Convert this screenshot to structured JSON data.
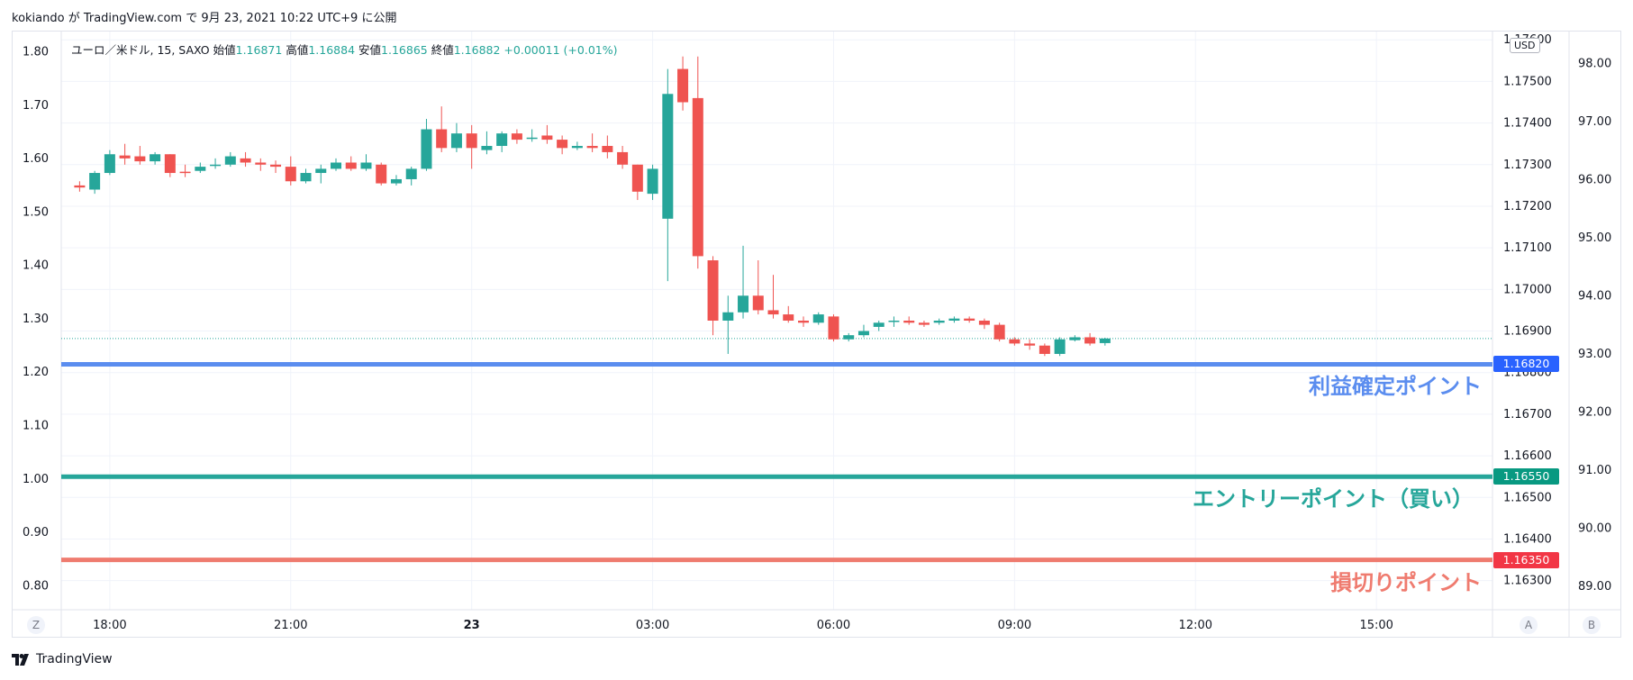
{
  "header": {
    "title": "kokiando が TradingView.com で 9月 23, 2021 10:22 UTC+9 に公開"
  },
  "legend": {
    "symbol": "ユーロ／米ドル, 15, SAXO",
    "open_label": "始値",
    "open": "1.16871",
    "high_label": "高値",
    "high": "1.16884",
    "low_label": "安値",
    "low": "1.16865",
    "close_label": "終値",
    "close": "1.16882",
    "change": "+0.00011 (+0.01%)"
  },
  "currency_button": "USD",
  "footer": {
    "brand": "TradingView",
    "zoom_left": "Z",
    "scale_a": "A",
    "scale_b": "B"
  },
  "colors": {
    "up": "#26a69a",
    "down": "#ef5350",
    "take_profit": "#5b8def",
    "entry": "#26a69a",
    "stop_loss": "#ef7b6f",
    "grid": "#f0f3fa"
  },
  "chart_data": {
    "type": "candlestick",
    "symbol": "EURUSD",
    "timeframe": "15",
    "price_axis": {
      "ylim": [
        1.1623,
        1.1762
      ],
      "ticks": [
        "1.17600",
        "1.17500",
        "1.17400",
        "1.17300",
        "1.17200",
        "1.17100",
        "1.17000",
        "1.16900",
        "1.16800",
        "1.16700",
        "1.16600",
        "1.16500",
        "1.16400",
        "1.16300"
      ]
    },
    "left_axis": {
      "ylim": [
        0.755,
        1.838
      ],
      "ticks": [
        "1.80",
        "1.70",
        "1.60",
        "1.50",
        "1.40",
        "1.30",
        "1.20",
        "1.10",
        "1.00",
        "0.90",
        "0.80"
      ]
    },
    "right_axis": {
      "ylim": [
        88.6,
        98.55
      ],
      "ticks": [
        "98.00",
        "97.00",
        "96.00",
        "95.00",
        "94.00",
        "93.00",
        "92.00",
        "91.00",
        "90.00",
        "89.00"
      ]
    },
    "time_axis": {
      "xlim": [
        17.3,
        33.95
      ],
      "ticks": [
        {
          "t": 18,
          "label": "18:00",
          "bold": false
        },
        {
          "t": 21,
          "label": "21:00",
          "bold": false
        },
        {
          "t": 24,
          "label": "23",
          "bold": true
        },
        {
          "t": 27,
          "label": "03:00",
          "bold": false
        },
        {
          "t": 30,
          "label": "06:00",
          "bold": false
        },
        {
          "t": 33,
          "label": "09:00",
          "bold": false
        },
        {
          "t": 36,
          "label": "12:00",
          "bold": false
        },
        {
          "t": 39,
          "label": "15:00",
          "bold": false
        }
      ]
    },
    "last_price": 1.16882,
    "levels": [
      {
        "name": "利益確定ポイント",
        "price": 1.1682,
        "label": "1.16820",
        "color": "#5b8def",
        "tag_color": "#2962ff"
      },
      {
        "name": "エントリーポイント（買い）",
        "price": 1.1655,
        "label": "1.16550",
        "color": "#26a69a",
        "tag_color": "#089981"
      },
      {
        "name": "損切りポイント",
        "price": 1.1635,
        "label": "1.16350",
        "color": "#ef7b6f",
        "tag_color": "#f23645"
      }
    ],
    "candles": [
      {
        "t": 17.5,
        "o": 1.1725,
        "h": 1.1726,
        "l": 1.17235,
        "c": 1.17245
      },
      {
        "t": 17.75,
        "o": 1.1724,
        "h": 1.17285,
        "l": 1.1723,
        "c": 1.1728
      },
      {
        "t": 18.0,
        "o": 1.1728,
        "h": 1.17335,
        "l": 1.17275,
        "c": 1.17325
      },
      {
        "t": 18.25,
        "o": 1.17322,
        "h": 1.1735,
        "l": 1.173,
        "c": 1.17315
      },
      {
        "t": 18.5,
        "o": 1.1732,
        "h": 1.17345,
        "l": 1.173,
        "c": 1.17308
      },
      {
        "t": 18.75,
        "o": 1.17308,
        "h": 1.1733,
        "l": 1.173,
        "c": 1.17325
      },
      {
        "t": 19.0,
        "o": 1.17325,
        "h": 1.17325,
        "l": 1.1727,
        "c": 1.1728
      },
      {
        "t": 19.25,
        "o": 1.17283,
        "h": 1.173,
        "l": 1.1727,
        "c": 1.1728
      },
      {
        "t": 19.5,
        "o": 1.17285,
        "h": 1.17305,
        "l": 1.1728,
        "c": 1.17295
      },
      {
        "t": 19.75,
        "o": 1.17298,
        "h": 1.17315,
        "l": 1.1729,
        "c": 1.173
      },
      {
        "t": 20.0,
        "o": 1.173,
        "h": 1.1733,
        "l": 1.17295,
        "c": 1.1732
      },
      {
        "t": 20.25,
        "o": 1.17315,
        "h": 1.1733,
        "l": 1.17295,
        "c": 1.17305
      },
      {
        "t": 20.5,
        "o": 1.17305,
        "h": 1.17315,
        "l": 1.17285,
        "c": 1.173
      },
      {
        "t": 20.75,
        "o": 1.173,
        "h": 1.1731,
        "l": 1.1728,
        "c": 1.17295
      },
      {
        "t": 21.0,
        "o": 1.17295,
        "h": 1.1732,
        "l": 1.1725,
        "c": 1.1726
      },
      {
        "t": 21.25,
        "o": 1.1726,
        "h": 1.1729,
        "l": 1.17255,
        "c": 1.1728
      },
      {
        "t": 21.5,
        "o": 1.1728,
        "h": 1.173,
        "l": 1.17255,
        "c": 1.1729
      },
      {
        "t": 21.75,
        "o": 1.1729,
        "h": 1.17315,
        "l": 1.17285,
        "c": 1.17305
      },
      {
        "t": 22.0,
        "o": 1.17305,
        "h": 1.1732,
        "l": 1.17285,
        "c": 1.1729
      },
      {
        "t": 22.25,
        "o": 1.1729,
        "h": 1.17325,
        "l": 1.17285,
        "c": 1.17305
      },
      {
        "t": 22.5,
        "o": 1.173,
        "h": 1.17305,
        "l": 1.1725,
        "c": 1.17255
      },
      {
        "t": 22.75,
        "o": 1.17255,
        "h": 1.17275,
        "l": 1.1725,
        "c": 1.17265
      },
      {
        "t": 23.0,
        "o": 1.17265,
        "h": 1.17295,
        "l": 1.1725,
        "c": 1.1729
      },
      {
        "t": 23.25,
        "o": 1.1729,
        "h": 1.1741,
        "l": 1.17285,
        "c": 1.17385
      },
      {
        "t": 23.5,
        "o": 1.17385,
        "h": 1.1744,
        "l": 1.1733,
        "c": 1.1734
      },
      {
        "t": 23.75,
        "o": 1.1734,
        "h": 1.174,
        "l": 1.1733,
        "c": 1.17375
      },
      {
        "t": 24.0,
        "o": 1.17375,
        "h": 1.17395,
        "l": 1.1729,
        "c": 1.1734
      },
      {
        "t": 24.25,
        "o": 1.17335,
        "h": 1.1738,
        "l": 1.17325,
        "c": 1.17345
      },
      {
        "t": 24.5,
        "o": 1.17345,
        "h": 1.1738,
        "l": 1.1733,
        "c": 1.17375
      },
      {
        "t": 24.75,
        "o": 1.17375,
        "h": 1.17385,
        "l": 1.1735,
        "c": 1.1736
      },
      {
        "t": 25.0,
        "o": 1.17363,
        "h": 1.17385,
        "l": 1.17355,
        "c": 1.17365
      },
      {
        "t": 25.25,
        "o": 1.1737,
        "h": 1.17395,
        "l": 1.1735,
        "c": 1.1736
      },
      {
        "t": 25.5,
        "o": 1.1736,
        "h": 1.1737,
        "l": 1.17325,
        "c": 1.1734
      },
      {
        "t": 25.75,
        "o": 1.1734,
        "h": 1.17355,
        "l": 1.17335,
        "c": 1.17345
      },
      {
        "t": 26.0,
        "o": 1.17345,
        "h": 1.17375,
        "l": 1.1733,
        "c": 1.1734
      },
      {
        "t": 26.25,
        "o": 1.17345,
        "h": 1.1737,
        "l": 1.17315,
        "c": 1.1733
      },
      {
        "t": 26.5,
        "o": 1.1733,
        "h": 1.17345,
        "l": 1.1729,
        "c": 1.173
      },
      {
        "t": 26.75,
        "o": 1.173,
        "h": 1.173,
        "l": 1.17215,
        "c": 1.17235
      },
      {
        "t": 27.0,
        "o": 1.1723,
        "h": 1.173,
        "l": 1.17215,
        "c": 1.1729
      },
      {
        "t": 27.25,
        "o": 1.1717,
        "h": 1.1753,
        "l": 1.1702,
        "c": 1.1747
      },
      {
        "t": 27.5,
        "o": 1.1753,
        "h": 1.1756,
        "l": 1.1743,
        "c": 1.1745
      },
      {
        "t": 27.75,
        "o": 1.1746,
        "h": 1.1756,
        "l": 1.1705,
        "c": 1.1708
      },
      {
        "t": 28.0,
        "o": 1.1707,
        "h": 1.1708,
        "l": 1.1689,
        "c": 1.16925
      },
      {
        "t": 28.25,
        "o": 1.16925,
        "h": 1.16985,
        "l": 1.16845,
        "c": 1.16945
      },
      {
        "t": 28.5,
        "o": 1.16945,
        "h": 1.17105,
        "l": 1.1693,
        "c": 1.16985
      },
      {
        "t": 28.75,
        "o": 1.16985,
        "h": 1.1707,
        "l": 1.1694,
        "c": 1.1695
      },
      {
        "t": 29.0,
        "o": 1.1695,
        "h": 1.17035,
        "l": 1.1693,
        "c": 1.1694
      },
      {
        "t": 29.25,
        "o": 1.1694,
        "h": 1.1696,
        "l": 1.1692,
        "c": 1.16925
      },
      {
        "t": 29.5,
        "o": 1.16925,
        "h": 1.16935,
        "l": 1.1691,
        "c": 1.1692
      },
      {
        "t": 29.75,
        "o": 1.1692,
        "h": 1.16945,
        "l": 1.16915,
        "c": 1.1694
      },
      {
        "t": 30.0,
        "o": 1.16935,
        "h": 1.1694,
        "l": 1.16875,
        "c": 1.1688
      },
      {
        "t": 30.25,
        "o": 1.1688,
        "h": 1.16895,
        "l": 1.16875,
        "c": 1.1689
      },
      {
        "t": 30.5,
        "o": 1.1689,
        "h": 1.16915,
        "l": 1.16885,
        "c": 1.169
      },
      {
        "t": 30.75,
        "o": 1.1691,
        "h": 1.16925,
        "l": 1.169,
        "c": 1.1692
      },
      {
        "t": 31.0,
        "o": 1.16925,
        "h": 1.16935,
        "l": 1.1691,
        "c": 1.16925
      },
      {
        "t": 31.25,
        "o": 1.16925,
        "h": 1.16935,
        "l": 1.16915,
        "c": 1.1692
      },
      {
        "t": 31.5,
        "o": 1.1692,
        "h": 1.16925,
        "l": 1.1691,
        "c": 1.16915
      },
      {
        "t": 31.75,
        "o": 1.1692,
        "h": 1.1693,
        "l": 1.16915,
        "c": 1.16925
      },
      {
        "t": 32.0,
        "o": 1.16925,
        "h": 1.16935,
        "l": 1.1692,
        "c": 1.1693
      },
      {
        "t": 32.25,
        "o": 1.1693,
        "h": 1.16935,
        "l": 1.1692,
        "c": 1.16925
      },
      {
        "t": 32.5,
        "o": 1.16925,
        "h": 1.1693,
        "l": 1.16905,
        "c": 1.16915
      },
      {
        "t": 32.75,
        "o": 1.16915,
        "h": 1.1692,
        "l": 1.16875,
        "c": 1.1688
      },
      {
        "t": 33.0,
        "o": 1.1688,
        "h": 1.16885,
        "l": 1.16865,
        "c": 1.1687
      },
      {
        "t": 33.25,
        "o": 1.1687,
        "h": 1.1688,
        "l": 1.16855,
        "c": 1.16865
      },
      {
        "t": 33.5,
        "o": 1.16865,
        "h": 1.1687,
        "l": 1.1684,
        "c": 1.16845
      },
      {
        "t": 33.75,
        "o": 1.16845,
        "h": 1.16885,
        "l": 1.1684,
        "c": 1.1688
      },
      {
        "t": 34.0,
        "o": 1.16878,
        "h": 1.1689,
        "l": 1.16875,
        "c": 1.16885
      },
      {
        "t": 34.25,
        "o": 1.16885,
        "h": 1.16895,
        "l": 1.16865,
        "c": 1.1687
      },
      {
        "t": 34.5,
        "o": 1.16871,
        "h": 1.16884,
        "l": 1.16865,
        "c": 1.16882
      }
    ]
  }
}
